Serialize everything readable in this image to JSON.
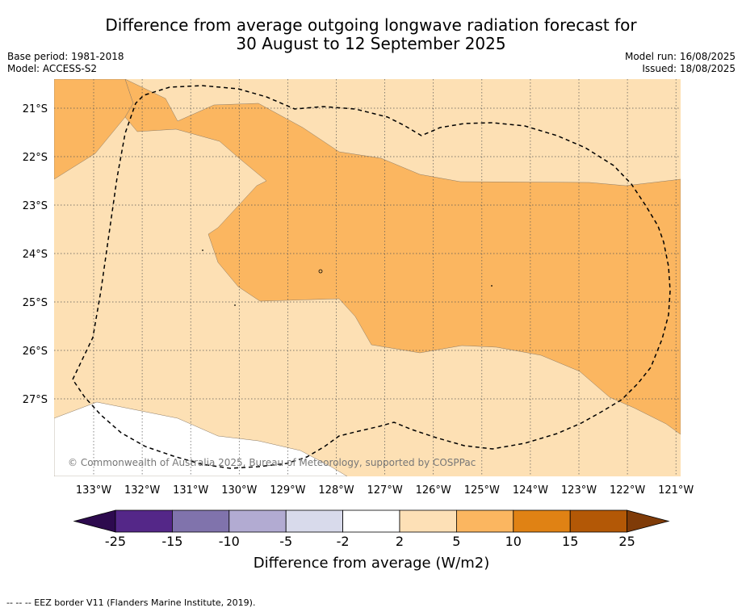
{
  "title": {
    "line1": "Difference from average outgoing longwave radiation forecast for",
    "line2": "30 August to 12 September 2025"
  },
  "meta_left": {
    "base_period": "Base period: 1981-2018",
    "model": "Model: ACCESS-S2"
  },
  "meta_right": {
    "model_run": "Model run: 16/08/2025",
    "issued": "Issued: 18/08/2025"
  },
  "map": {
    "lon_labels": [
      "133°W",
      "132°W",
      "131°W",
      "130°W",
      "129°W",
      "128°W",
      "127°W",
      "126°W",
      "125°W",
      "124°W",
      "123°W",
      "122°W",
      "121°W"
    ],
    "lat_labels": [
      "21°S",
      "22°S",
      "23°S",
      "24°S",
      "25°S",
      "26°S",
      "27°S"
    ],
    "copyright": "© Commonwealth of Australia 2025, Bureau of Meteorology, supported by COSPPac",
    "colors": {
      "white": "#ffffff",
      "light": "#fde0b4",
      "medium": "#fbb660"
    }
  },
  "colorbar": {
    "title": "Difference from average (W/m2)",
    "tick_labels": [
      "-25",
      "-15",
      "-10",
      "-5",
      "-2",
      "2",
      "5",
      "10",
      "15",
      "25"
    ],
    "colors": [
      "#2d0a4e",
      "#542788",
      "#8073ac",
      "#b2abd2",
      "#d8daeb",
      "#ffffff",
      "#fde0b6",
      "#fbb660",
      "#e08214",
      "#b35806",
      "#7f3b08"
    ]
  },
  "footer": "--  --  -- EEZ border V11 (Flanders Marine Institute, 2019)."
}
